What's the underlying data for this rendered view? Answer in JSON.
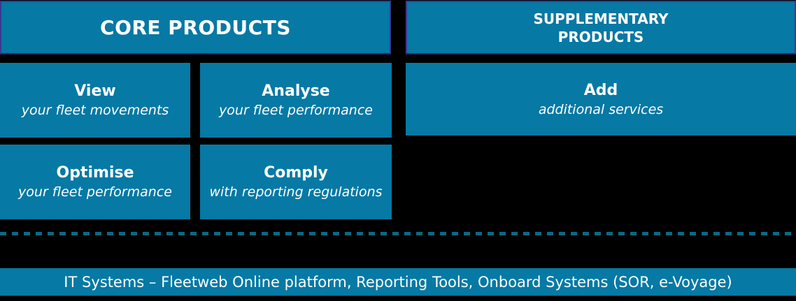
{
  "colors": {
    "background": "#000000",
    "box_teal": "#0679a4",
    "header_border_blue": "#3a3a94",
    "dash_teal": "#0e6880",
    "text_white": "#ffffff"
  },
  "headers": {
    "core": {
      "label": "CORE PRODUCTS"
    },
    "supplementary": {
      "label": "SUPPLEMENTARY\nPRODUCTS"
    }
  },
  "core_boxes": [
    {
      "id": "view",
      "title": "View",
      "subtitle": "your fleet movements"
    },
    {
      "id": "analyse",
      "title": "Analyse",
      "subtitle": "your fleet performance"
    },
    {
      "id": "optimise",
      "title": "Optimise",
      "subtitle": "your fleet performance"
    },
    {
      "id": "comply",
      "title": "Comply",
      "subtitle": "with reporting regulations"
    }
  ],
  "supplementary_boxes": [
    {
      "id": "add",
      "title": "Add",
      "subtitle": "additional services"
    }
  ],
  "footer": {
    "label": "IT Systems – Fleetweb Online platform, Reporting Tools, Onboard Systems (SOR, e-Voyage)"
  }
}
